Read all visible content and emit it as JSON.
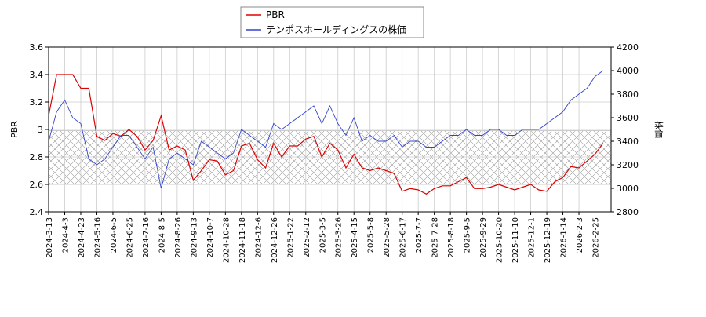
{
  "chart_data": {
    "type": "line",
    "x": [
      "2024-3-13",
      null,
      "2024-4-3",
      null,
      "2024-4-23",
      null,
      "2024-5-16",
      null,
      "2024-6-5",
      null,
      "2024-6-25",
      null,
      "2024-7-16",
      null,
      "2024-8-5",
      null,
      "2024-8-26",
      null,
      "2024-9-13",
      null,
      "2024-10-7",
      null,
      "2024-10-28",
      null,
      "2024-11-18",
      null,
      "2024-12-6",
      null,
      "2024-12-26",
      null,
      "2025-1-22",
      null,
      "2025-2-12",
      null,
      "2025-3-5",
      null,
      "2025-3-26",
      null,
      "2025-4-15",
      null,
      "2025-5-8",
      null,
      "2025-5-28",
      null,
      "2025-6-17",
      null,
      "2025-7-7",
      null,
      "2025-7-28",
      null,
      "2025-8-18",
      null,
      "2025-9-5",
      null,
      "2025-9-29",
      null,
      "2025-10-20",
      null,
      "2025-11-10",
      null,
      "2025-12-1",
      null,
      "2025-12-19",
      null,
      "2026-1-14",
      null,
      "2026-2-3",
      null,
      "2026-2-25",
      null
    ],
    "series": [
      {
        "name": "PBR",
        "color": "#dd0000",
        "values": [
          3.1,
          3.4,
          3.4,
          3.4,
          3.3,
          3.3,
          2.95,
          2.92,
          2.97,
          2.95,
          3.0,
          2.95,
          2.85,
          2.92,
          3.1,
          2.85,
          2.88,
          2.85,
          2.63,
          2.7,
          2.78,
          2.77,
          2.67,
          2.7,
          2.88,
          2.9,
          2.78,
          2.72,
          2.9,
          2.8,
          2.88,
          2.88,
          2.93,
          2.95,
          2.8,
          2.9,
          2.85,
          2.72,
          2.82,
          2.72,
          2.7,
          2.72,
          2.7,
          2.68,
          2.55,
          2.57,
          2.56,
          2.53,
          2.57,
          2.59,
          2.59,
          2.62,
          2.65,
          2.57,
          2.57,
          2.58,
          2.6,
          2.58,
          2.56,
          2.58,
          2.6,
          2.56,
          2.55,
          2.62,
          2.65,
          2.73,
          2.72,
          2.77,
          2.82,
          2.9
        ]
      },
      {
        "name": "テンポスホールディングスの株価",
        "color": "#3344cc",
        "axis": "y2",
        "values": [
          3400,
          3650,
          3750,
          3600,
          3550,
          3250,
          3200,
          3250,
          3350,
          3450,
          3450,
          3350,
          3250,
          3350,
          3000,
          3250,
          3300,
          3250,
          3200,
          3400,
          3350,
          3300,
          3250,
          3300,
          3500,
          3450,
          3400,
          3350,
          3550,
          3500,
          3550,
          3600,
          3650,
          3700,
          3550,
          3700,
          3550,
          3450,
          3600,
          3400,
          3450,
          3400,
          3400,
          3450,
          3350,
          3400,
          3400,
          3350,
          3350,
          3400,
          3450,
          3450,
          3500,
          3450,
          3450,
          3500,
          3500,
          3450,
          3450,
          3500,
          3500,
          3500,
          3550,
          3600,
          3650,
          3750,
          3800,
          3850,
          3950,
          4000
        ]
      }
    ],
    "y_label": "PBR",
    "y2_label": "株価",
    "ylim": [
      2.4,
      3.6
    ],
    "yticks": [
      2.4,
      2.6,
      2.8,
      3.0,
      3.2,
      3.4,
      3.6
    ],
    "y2lim": [
      2800,
      4200
    ],
    "y2ticks": [
      2800,
      3000,
      3200,
      3400,
      3600,
      3800,
      4000,
      4200
    ],
    "shaded_range": [
      2.6,
      2.99
    ],
    "grid": true,
    "legend": "top"
  }
}
